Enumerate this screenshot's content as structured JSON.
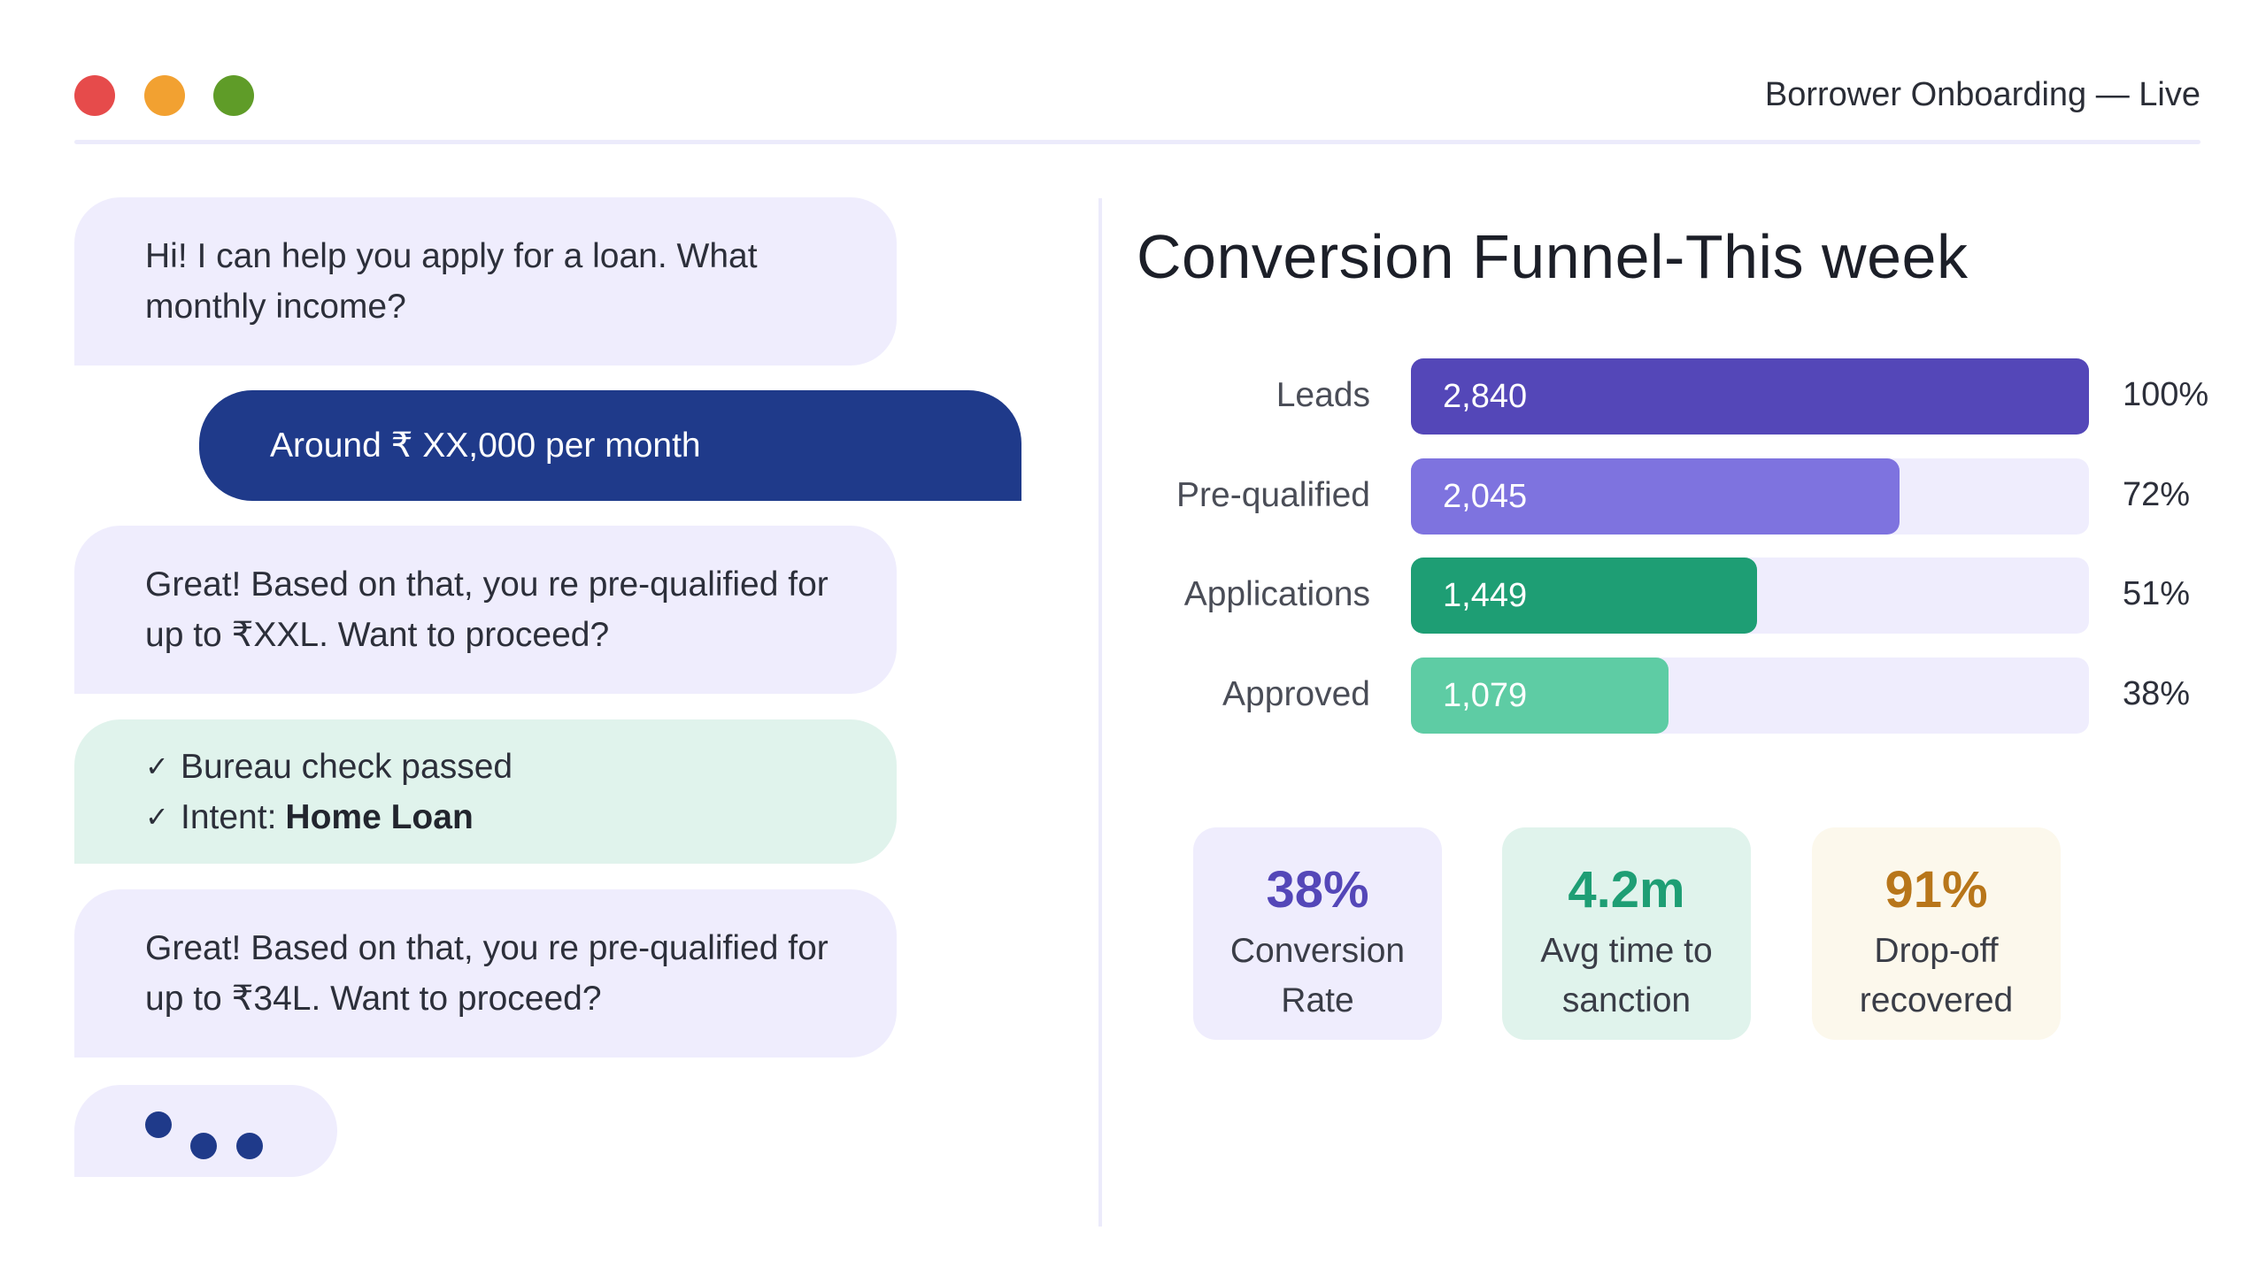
{
  "window": {
    "title": "Borrower Onboarding — Live",
    "colors": {
      "close": "#e64b4b",
      "minimize": "#f2a131",
      "maximize": "#5f9c28"
    }
  },
  "chat": {
    "messages": [
      {
        "from": "bot",
        "text": "Hi! I can help you apply for a loan. What monthly income?"
      },
      {
        "from": "user",
        "text": "Around ₹ XX,000 per month"
      },
      {
        "from": "bot",
        "text": "Great! Based on that, you re pre-qualified for up to ₹XXL. Want to proceed?"
      },
      {
        "from": "system",
        "checks": [
          {
            "icon": "checkmark-icon",
            "text": "Bureau check passed"
          },
          {
            "icon": "checkmark-icon",
            "label": "Intent:",
            "value": "Home Loan"
          }
        ]
      },
      {
        "from": "bot",
        "text": "Great! Based on that, you re pre-qualified for up to ₹34L. Want to proceed?"
      }
    ],
    "typing_indicator": "typing-dots-icon",
    "colors": {
      "bot_bubble": "#efedfd",
      "user_bubble": "#1f3a8a",
      "system_bubble": "#e0f3ec"
    }
  },
  "funnel": {
    "title": "Conversion Funnel-This week",
    "stages": [
      {
        "label": "Leads",
        "value": "2,840",
        "pct": "100%",
        "fraction": 1.0,
        "color": "#5447b8"
      },
      {
        "label": "Pre-qualified",
        "value": "2,045",
        "pct": "72%",
        "fraction": 0.72,
        "color": "#7e73df"
      },
      {
        "label": "Applications",
        "value": "1,449",
        "pct": "51%",
        "fraction": 0.51,
        "color": "#1e9e74"
      },
      {
        "label": "Approved",
        "value": "1,079",
        "pct": "38%",
        "fraction": 0.38,
        "color": "#5ecca4"
      }
    ]
  },
  "stats": [
    {
      "value": "38%",
      "label": "Conversion Rate",
      "color": "#5447b8",
      "bg": "#efedfd"
    },
    {
      "value": "4.2m",
      "label": "Avg time to sanction",
      "color": "#1e9e74",
      "bg": "#e0f3ec"
    },
    {
      "value": "91%",
      "label": "Drop-off recovered",
      "color": "#b8761a",
      "bg": "#fcf8ec"
    }
  ]
}
